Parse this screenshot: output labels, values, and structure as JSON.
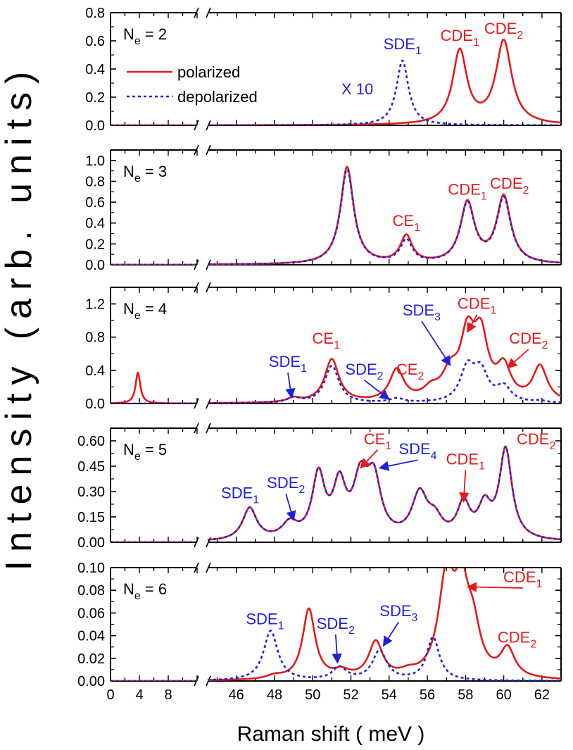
{
  "chart_data": {
    "type": "line",
    "xlabel": "Raman shift ( meV )",
    "ylabel": "Intensity (arb. units)",
    "colors": {
      "polarized": "#e31a1c",
      "depolarized": "#1f1fe0"
    },
    "legend": {
      "polarized": "polarized",
      "depolarized": "depolarized"
    },
    "x_ticks_left": [
      {
        "v": 0,
        "label": "0"
      },
      {
        "v": 4,
        "label": "4"
      },
      {
        "v": 8,
        "label": "8"
      }
    ],
    "x_ticks_right": [
      {
        "v": 46,
        "label": "46"
      },
      {
        "v": 48,
        "label": "48"
      },
      {
        "v": 50,
        "label": "50"
      },
      {
        "v": 52,
        "label": "52"
      },
      {
        "v": 54,
        "label": "54"
      },
      {
        "v": 56,
        "label": "56"
      },
      {
        "v": 58,
        "label": "58"
      },
      {
        "v": 60,
        "label": "60"
      },
      {
        "v": 62,
        "label": "62"
      }
    ],
    "x_ranges": {
      "left": [
        0,
        12
      ],
      "right": [
        44.5,
        63
      ]
    },
    "panels": [
      {
        "label": "N",
        "label_sub": "e",
        "label_tail": " = 2",
        "ylim": [
          0,
          0.8
        ],
        "yticks": [
          "0.0",
          "0.2",
          "0.4",
          "0.6",
          "0.8"
        ],
        "show_legend": true,
        "scale_note": "X 10",
        "series": [
          {
            "name": "polarized",
            "baseline": 0.0,
            "peaks": [
              [
                57.7,
                0.52,
                0.45
              ],
              [
                60.0,
                0.59,
                0.5
              ]
            ]
          },
          {
            "name": "depolarized",
            "baseline": 0.0,
            "peaks": [
              [
                54.7,
                0.46,
                0.38
              ]
            ]
          }
        ],
        "annotations": [
          {
            "text": "SDE",
            "sub": "1",
            "color": "blue",
            "x": 54.7,
            "y": 0.54
          },
          {
            "text": "CDE",
            "sub": "1",
            "color": "red",
            "x": 57.7,
            "y": 0.6
          },
          {
            "text": "CDE",
            "sub": "2",
            "color": "red",
            "x": 60.0,
            "y": 0.65
          }
        ]
      },
      {
        "label": "N",
        "label_sub": "e",
        "label_tail": " = 3",
        "ylim": [
          0,
          1.1
        ],
        "yticks": [
          "0.0",
          "0.2",
          "0.4",
          "0.6",
          "0.8",
          "1.0"
        ],
        "series": [
          {
            "name": "polarized",
            "baseline": 0.0,
            "peaks": [
              [
                51.8,
                0.93,
                0.42
              ],
              [
                54.9,
                0.26,
                0.38
              ],
              [
                58.1,
                0.58,
                0.45
              ],
              [
                60.0,
                0.64,
                0.45
              ]
            ]
          },
          {
            "name": "depolarized",
            "baseline": 0.0,
            "peaks": [
              [
                51.8,
                0.91,
                0.42
              ],
              [
                54.9,
                0.22,
                0.38
              ],
              [
                58.1,
                0.57,
                0.45
              ],
              [
                60.0,
                0.62,
                0.45
              ]
            ]
          }
        ],
        "annotations": [
          {
            "text": "CE",
            "sub": "1",
            "color": "red",
            "x": 54.9,
            "y": 0.37
          },
          {
            "text": "CDE",
            "sub": "1",
            "color": "red",
            "x": 58.1,
            "y": 0.67
          },
          {
            "text": "CDE",
            "sub": "2",
            "color": "red",
            "x": 60.3,
            "y": 0.73
          }
        ]
      },
      {
        "label": "N",
        "label_sub": "e",
        "label_tail": " = 4",
        "ylim": [
          0,
          1.4
        ],
        "yticks": [
          "0.0",
          "0.4",
          "0.8",
          "1.2"
        ],
        "series": [
          {
            "name": "polarized",
            "baseline": 0.0,
            "peaks": [
              [
                3.8,
                0.37,
                0.4
              ],
              [
                49.0,
                0.05,
                0.4
              ],
              [
                51.0,
                0.52,
                0.45
              ],
              [
                54.4,
                0.38,
                0.45
              ],
              [
                56.2,
                0.12,
                0.5
              ],
              [
                57.2,
                0.3,
                0.5
              ],
              [
                58.1,
                0.72,
                0.45
              ],
              [
                58.8,
                0.72,
                0.45
              ],
              [
                60.0,
                0.38,
                0.45
              ],
              [
                61.9,
                0.42,
                0.45
              ]
            ]
          },
          {
            "name": "depolarized",
            "baseline": 0.0,
            "peaks": [
              [
                49.0,
                0.06,
                0.4
              ],
              [
                51.0,
                0.45,
                0.45
              ],
              [
                54.4,
                0.05,
                0.45
              ],
              [
                58.1,
                0.4,
                0.45
              ],
              [
                58.8,
                0.35,
                0.45
              ],
              [
                60.0,
                0.18,
                0.45
              ],
              [
                61.9,
                0.02,
                0.4
              ]
            ]
          }
        ],
        "annotations": [
          {
            "text": "SDE",
            "sub": "1",
            "color": "blue",
            "x": 48.7,
            "y": 0.44,
            "arrow": [
              48.9,
              0.07
            ]
          },
          {
            "text": "CE",
            "sub": "1",
            "color": "red",
            "x": 50.7,
            "y": 0.72
          },
          {
            "text": "SDE",
            "sub": "2",
            "color": "blue",
            "x": 52.7,
            "y": 0.35,
            "arrow": [
              54.0,
              0.05
            ]
          },
          {
            "text": "CE",
            "sub": "2",
            "color": "red",
            "x": 55.1,
            "y": 0.35
          },
          {
            "text": "SDE",
            "sub": "3",
            "color": "blue",
            "x": 55.7,
            "y": 1.06,
            "arrow": [
              57.2,
              0.46
            ]
          },
          {
            "text": "CDE",
            "sub": "1",
            "color": "red",
            "x": 58.6,
            "y": 1.14,
            "arrow": [
              58.1,
              0.86
            ]
          },
          {
            "text": "CDE",
            "sub": "2",
            "color": "red",
            "x": 61.3,
            "y": 0.72,
            "arrow": [
              60.2,
              0.43
            ]
          }
        ]
      },
      {
        "label": "N",
        "label_sub": "e",
        "label_tail": " = 5",
        "ylim": [
          0,
          0.675
        ],
        "yticks": [
          "0.00",
          "0.15",
          "0.30",
          "0.45",
          "0.60"
        ],
        "series": [
          {
            "name": "polarized",
            "baseline": 0.0,
            "peaks": [
              [
                46.7,
                0.19,
                0.45
              ],
              [
                48.8,
                0.09,
                0.5
              ],
              [
                50.3,
                0.37,
                0.4
              ],
              [
                51.4,
                0.3,
                0.4
              ],
              [
                52.5,
                0.32,
                0.45
              ],
              [
                53.2,
                0.33,
                0.45
              ],
              [
                55.6,
                0.26,
                0.5
              ],
              [
                56.4,
                0.1,
                0.45
              ],
              [
                57.9,
                0.2,
                0.4
              ],
              [
                59.0,
                0.18,
                0.4
              ],
              [
                60.1,
                0.53,
                0.4
              ]
            ]
          },
          {
            "name": "depolarized",
            "baseline": 0.0,
            "peaks": [
              [
                46.7,
                0.19,
                0.45
              ],
              [
                48.8,
                0.09,
                0.5
              ],
              [
                50.3,
                0.37,
                0.4
              ],
              [
                51.4,
                0.3,
                0.4
              ],
              [
                52.5,
                0.32,
                0.45
              ],
              [
                53.2,
                0.33,
                0.45
              ],
              [
                55.6,
                0.26,
                0.5
              ],
              [
                56.4,
                0.1,
                0.45
              ],
              [
                57.9,
                0.2,
                0.4
              ],
              [
                59.0,
                0.18,
                0.4
              ],
              [
                60.1,
                0.53,
                0.4
              ]
            ]
          }
        ],
        "annotations": [
          {
            "text": "SDE",
            "sub": "1",
            "color": "blue",
            "x": 46.2,
            "y": 0.26
          },
          {
            "text": "SDE",
            "sub": "2",
            "color": "blue",
            "x": 48.6,
            "y": 0.32,
            "arrow": [
              49.0,
              0.13
            ]
          },
          {
            "text": "CE",
            "sub": "1",
            "color": "red",
            "x": 53.4,
            "y": 0.58,
            "arrow": [
              52.5,
              0.44
            ]
          },
          {
            "text": "SDE",
            "sub": "4",
            "color": "blue",
            "x": 55.5,
            "y": 0.52,
            "arrow": [
              53.5,
              0.44
            ]
          },
          {
            "text": "CDE",
            "sub": "1",
            "color": "red",
            "x": 58.0,
            "y": 0.46,
            "arrow": [
              57.9,
              0.24
            ]
          },
          {
            "text": "CDE",
            "sub": "2",
            "color": "red",
            "x": 61.7,
            "y": 0.58
          }
        ]
      },
      {
        "label": "N",
        "label_sub": "e",
        "label_tail": " = 6",
        "ylim": [
          0,
          0.1
        ],
        "yticks": [
          "0.00",
          "0.02",
          "0.04",
          "0.06",
          "0.08",
          "0.10"
        ],
        "series": [
          {
            "name": "polarized",
            "baseline": 0.0,
            "peaks": [
              [
                48.0,
                0.003,
                0.5
              ],
              [
                49.8,
                0.062,
                0.4
              ],
              [
                51.5,
                0.006,
                0.5
              ],
              [
                53.3,
                0.032,
                0.45
              ],
              [
                55.0,
                0.004,
                0.5
              ],
              [
                57.0,
                0.085,
                0.5
              ],
              [
                57.8,
                0.068,
                0.45
              ],
              [
                58.4,
                0.036,
                0.45
              ],
              [
                60.2,
                0.025,
                0.45
              ]
            ]
          },
          {
            "name": "depolarized",
            "baseline": 0.0,
            "peaks": [
              [
                47.8,
                0.044,
                0.45
              ],
              [
                51.4,
                0.011,
                0.45
              ],
              [
                53.5,
                0.026,
                0.45
              ],
              [
                56.3,
                0.038,
                0.4
              ]
            ]
          }
        ],
        "annotations": [
          {
            "text": "SDE",
            "sub": "1",
            "color": "blue",
            "x": 47.5,
            "y": 0.05
          },
          {
            "text": "SDE",
            "sub": "2",
            "color": "blue",
            "x": 51.2,
            "y": 0.046,
            "arrow": [
              51.3,
              0.016
            ]
          },
          {
            "text": "SDE",
            "sub": "3",
            "color": "blue",
            "x": 54.5,
            "y": 0.057,
            "arrow": [
              53.7,
              0.031
            ]
          },
          {
            "text": "CDE",
            "sub": "1",
            "color": "red",
            "x": 61.0,
            "y": 0.087,
            "arrow": [
              58.1,
              0.083
            ]
          },
          {
            "text": "CDE",
            "sub": "2",
            "color": "red",
            "x": 60.7,
            "y": 0.034
          }
        ]
      }
    ]
  }
}
